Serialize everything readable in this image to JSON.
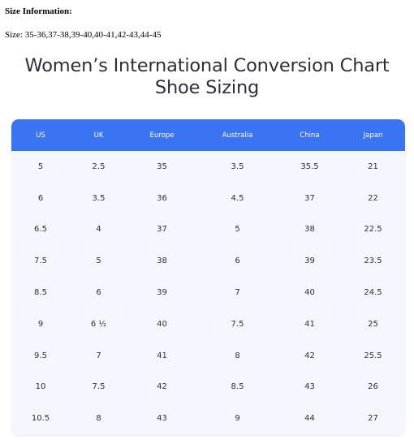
{
  "size_info": {
    "heading": "Size Information:",
    "text": "Size: 35-36,37-38,39-40,40-41,42-43,44-45"
  },
  "chart": {
    "title_line1": "Women’s International Conversion Chart",
    "title_line2": "Shoe Sizing"
  },
  "table": {
    "columns": [
      "US",
      "UK",
      "Europe",
      "Australia",
      "China",
      "Japan"
    ],
    "rows": [
      [
        "5",
        "2.5",
        "35",
        "3.5",
        "35.5",
        "21"
      ],
      [
        "6",
        "3.5",
        "36",
        "4.5",
        "37",
        "22"
      ],
      [
        "6.5",
        "4",
        "37",
        "5",
        "38",
        "22.5"
      ],
      [
        "7.5",
        "5",
        "38",
        "6",
        "39",
        "23.5"
      ],
      [
        "8.5",
        "6",
        "39",
        "7",
        "40",
        "24.5"
      ],
      [
        "9",
        "6 ½",
        "40",
        "7.5",
        "41",
        "25"
      ],
      [
        "9.5",
        "7",
        "41",
        "8",
        "42",
        "25.5"
      ],
      [
        "10",
        "7.5",
        "42",
        "8.5",
        "43",
        "26"
      ],
      [
        "10.5",
        "8",
        "43",
        "9",
        "44",
        "27"
      ]
    ]
  },
  "colors": {
    "header_bg": "#3b74f2",
    "table_bg": "#f4f7fe",
    "title_text": "#2f2f3a"
  }
}
